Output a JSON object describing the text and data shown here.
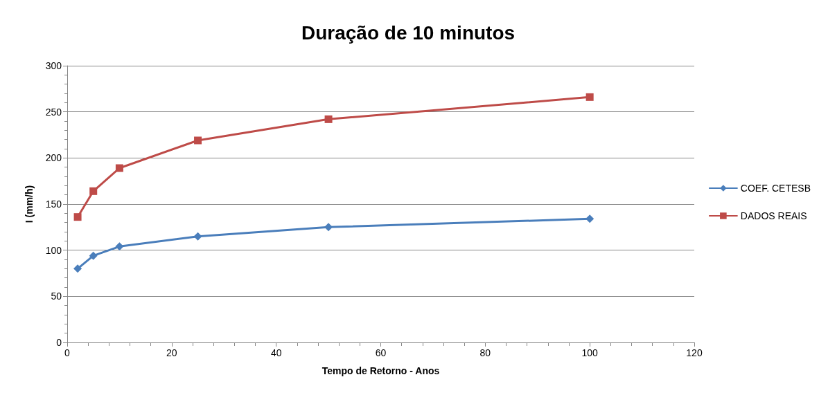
{
  "chart_data": {
    "type": "line",
    "title": "Duração de 10 minutos",
    "xlabel": "Tempo de Retorno - Anos",
    "ylabel": "I (mm/h)",
    "x": [
      2,
      5,
      10,
      25,
      50,
      100
    ],
    "series": [
      {
        "name": "COEF. CETESB",
        "color": "#4a7ebb",
        "marker": "diamond",
        "values": [
          80,
          94,
          104,
          115,
          125,
          134
        ]
      },
      {
        "name": "DADOS REAIS",
        "color": "#be4b48",
        "marker": "square",
        "values": [
          136,
          164,
          189,
          219,
          242,
          266
        ]
      }
    ],
    "xlim": [
      0,
      120
    ],
    "xticks": [
      0,
      20,
      40,
      60,
      80,
      100,
      120
    ],
    "ylim": [
      0,
      300
    ],
    "yticks": [
      0,
      50,
      100,
      150,
      200,
      250,
      300
    ],
    "grid": "y",
    "legend": "right",
    "line_style": "solid"
  }
}
